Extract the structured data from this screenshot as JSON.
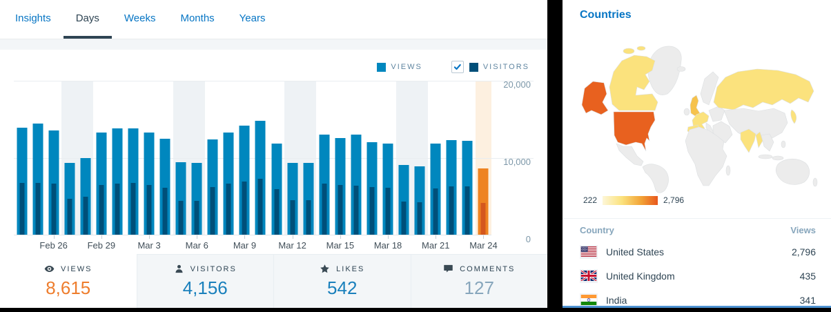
{
  "tabs_bar": {
    "tabs": [
      {
        "label": "Insights",
        "active": false
      },
      {
        "label": "Days",
        "active": true
      },
      {
        "label": "Weeks",
        "active": false
      },
      {
        "label": "Months",
        "active": false
      },
      {
        "label": "Years",
        "active": false
      }
    ]
  },
  "legend": {
    "views_label": "VIEWS",
    "visitors_label": "VISITORS",
    "visitors_checkbox_checked": true
  },
  "chart_data": {
    "type": "bar",
    "title": "Daily views and visitors",
    "x": [
      "Feb 24",
      "Feb 25",
      "Feb 26",
      "Feb 27",
      "Feb 28",
      "Feb 29",
      "Mar 1",
      "Mar 2",
      "Mar 3",
      "Mar 4",
      "Mar 5",
      "Mar 6",
      "Mar 7",
      "Mar 8",
      "Mar 9",
      "Mar 10",
      "Mar 11",
      "Mar 12",
      "Mar 13",
      "Mar 14",
      "Mar 15",
      "Mar 16",
      "Mar 17",
      "Mar 18",
      "Mar 19",
      "Mar 20",
      "Mar 21",
      "Mar 22",
      "Mar 23",
      "Mar 24"
    ],
    "x_tick_indices": [
      2,
      5,
      8,
      11,
      14,
      17,
      20,
      23,
      26,
      29
    ],
    "x_tick_labels": [
      "Feb 26",
      "Feb 29",
      "Mar 3",
      "Mar 6",
      "Mar 9",
      "Mar 12",
      "Mar 15",
      "Mar 18",
      "Mar 21",
      "Mar 24"
    ],
    "series": [
      {
        "name": "Views",
        "color": "#0087be",
        "values": [
          13900,
          14400,
          13500,
          9300,
          10000,
          13300,
          13800,
          13800,
          13300,
          12500,
          9400,
          9300,
          12400,
          13300,
          14200,
          14800,
          11800,
          9300,
          9300,
          13000,
          12600,
          13000,
          12000,
          11800,
          9100,
          8900,
          11800,
          12300,
          12200,
          8615
        ]
      },
      {
        "name": "Visitors",
        "color": "#004f79",
        "values": [
          6700,
          6700,
          6600,
          4700,
          4900,
          6500,
          6600,
          6700,
          6500,
          6100,
          4400,
          4400,
          6200,
          6600,
          6900,
          7300,
          5900,
          4500,
          4500,
          6600,
          6500,
          6400,
          6200,
          6100,
          4300,
          4200,
          6000,
          6300,
          6300,
          4156
        ]
      }
    ],
    "ylim": [
      0,
      20000
    ],
    "y_tick_labels": [
      "20,000",
      "10,000",
      "0"
    ],
    "grid": "horizontal",
    "legend_position": "top-right",
    "weekend_shaded_indices": [
      3,
      4,
      10,
      11,
      17,
      18,
      24,
      25
    ],
    "selected_index": 29,
    "selected_colors": {
      "views": "#ee8322",
      "visitors": "#d4571e",
      "band": "#fdf0e0"
    },
    "weekend_band_color": "#eef2f5"
  },
  "summary": {
    "cells": [
      {
        "icon": "eye",
        "label": "VIEWS",
        "value": "8,615",
        "value_color": "#ee7d2d",
        "selected": true
      },
      {
        "icon": "person",
        "label": "VISITORS",
        "value": "4,156",
        "value_color": "#1a80bc",
        "selected": false
      },
      {
        "icon": "star",
        "label": "LIKES",
        "value": "542",
        "value_color": "#1a80bc",
        "selected": false
      },
      {
        "icon": "comment",
        "label": "COMMENTS",
        "value": "127",
        "value_color": "#87a6bc",
        "selected": false
      }
    ]
  },
  "countries": {
    "title": "Countries",
    "scale": {
      "min_label": "222",
      "max_label": "2,796"
    },
    "map": {
      "max_color": "#e8611f",
      "low_color": "#fbe27d",
      "no_data_color": "#ececec",
      "max_countries": [
        "United States"
      ],
      "low_countries": [
        "Canada",
        "Russia",
        "United Kingdom",
        "France",
        "Germany",
        "Spain",
        "India",
        "Japan"
      ]
    },
    "table": {
      "headers": [
        "Country",
        "Views"
      ],
      "rows": [
        {
          "flag": "us",
          "country": "United States",
          "views": "2,796"
        },
        {
          "flag": "gb",
          "country": "United Kingdom",
          "views": "435"
        },
        {
          "flag": "in",
          "country": "India",
          "views": "341"
        }
      ]
    }
  }
}
